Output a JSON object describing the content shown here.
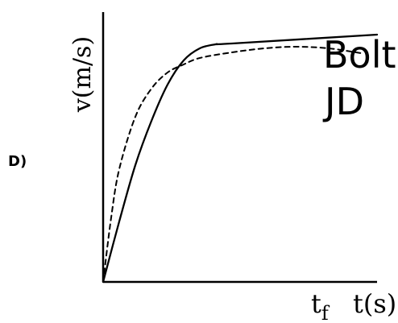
{
  "panel_label": "D)",
  "chart_data": {
    "type": "line",
    "xlabel": "t(s)",
    "ylabel": "v(m/s)",
    "x_marker": {
      "base": "t",
      "sub": "f"
    },
    "xlim": [
      0,
      1
    ],
    "ylim": [
      0,
      1
    ],
    "grid": false,
    "series": [
      {
        "name": "Bolt",
        "line_style": "solid",
        "color": "#000000",
        "x": [
          0.0,
          0.0588,
          0.1176,
          0.1765,
          0.2353,
          0.2941,
          0.3529,
          0.4118,
          0.4706,
          1.0
        ],
        "y": [
          0.0,
          0.2381,
          0.4603,
          0.6349,
          0.7778,
          0.873,
          0.9206,
          0.9365,
          0.9397,
          0.9746
        ]
      },
      {
        "name": "JD",
        "line_style": "dashed",
        "color": "#000000",
        "x": [
          0.0,
          0.0294,
          0.0588,
          0.1176,
          0.1765,
          0.2353,
          0.2941,
          0.3529,
          0.4706,
          0.5882,
          0.7059,
          0.8235,
          0.9412
        ],
        "y": [
          0.0,
          0.254,
          0.4444,
          0.6508,
          0.7619,
          0.8254,
          0.8571,
          0.8825,
          0.9048,
          0.9206,
          0.927,
          0.9206,
          0.9016
        ]
      }
    ]
  }
}
